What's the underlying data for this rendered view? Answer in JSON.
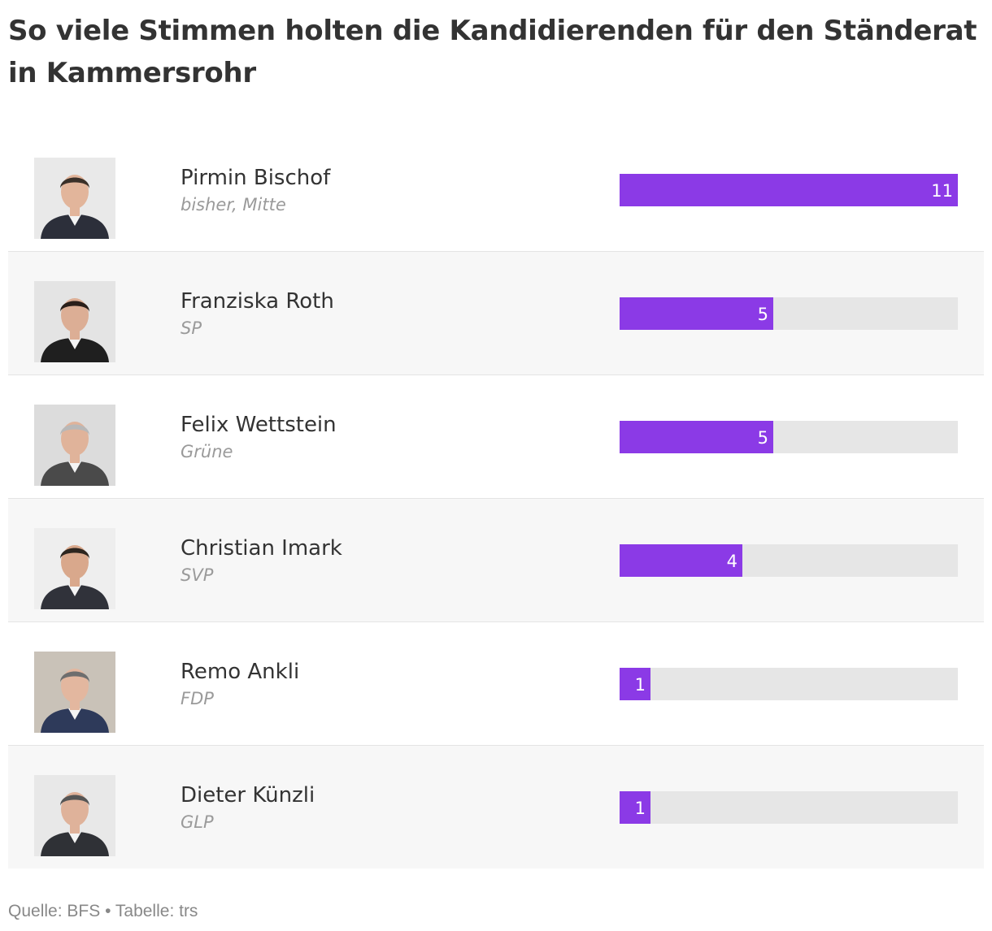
{
  "title": "So viele Stimmen holten die Kandidierenden für den Ständerat in Kammersrohr",
  "footer": {
    "source": "Quelle: BFS",
    "separator": "•",
    "credit": "Tabelle: trs"
  },
  "colors": {
    "bar": "#8b3ae6",
    "track": "#e6e6e6",
    "row_alt": "#f7f7f7",
    "text": "#333333",
    "muted": "#9a9a9a"
  },
  "chart_data": {
    "type": "bar",
    "orientation": "horizontal",
    "title": "So viele Stimmen holten die Kandidierenden für den Ständerat in Kammersrohr",
    "xlim": [
      0,
      11
    ],
    "rows": [
      {
        "name": "Pirmin Bischof",
        "party": "bisher, Mitte",
        "votes": 11,
        "photo": "portrait-photo"
      },
      {
        "name": "Franziska Roth",
        "party": "SP",
        "votes": 5,
        "photo": "portrait-photo"
      },
      {
        "name": "Felix Wettstein",
        "party": "Grüne",
        "votes": 5,
        "photo": "portrait-photo"
      },
      {
        "name": "Christian Imark",
        "party": "SVP",
        "votes": 4,
        "photo": "portrait-photo"
      },
      {
        "name": "Remo Ankli",
        "party": "FDP",
        "votes": 1,
        "photo": "portrait-photo"
      },
      {
        "name": "Dieter Künzli",
        "party": "GLP",
        "votes": 1,
        "photo": "portrait-photo"
      }
    ]
  }
}
